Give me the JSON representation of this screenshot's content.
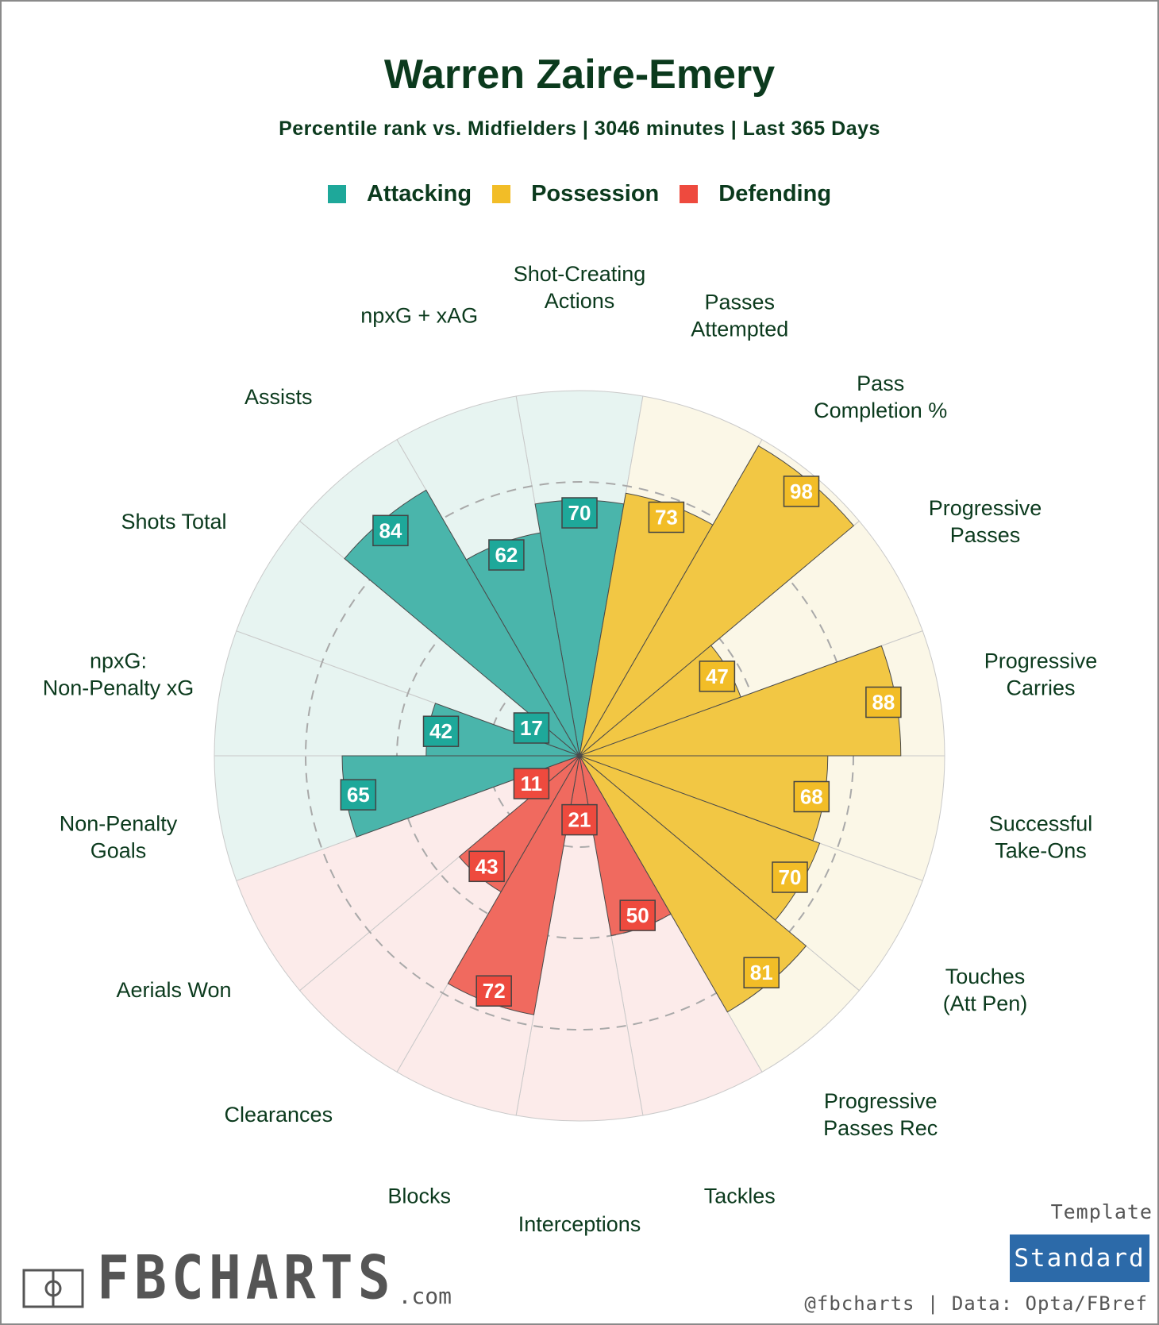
{
  "header": {
    "title": "Warren Zaire-Emery",
    "subtitle": "Percentile rank vs. Midfielders | 3046 minutes | Last 365 Days"
  },
  "legend": [
    {
      "label": "Attacking",
      "color": "#1ea89a"
    },
    {
      "label": "Possession",
      "color": "#f2bd27"
    },
    {
      "label": "Defending",
      "color": "#ee4a3e"
    }
  ],
  "chart_data": {
    "type": "polar-bar",
    "scale": [
      0,
      100
    ],
    "reference_rings": [
      25,
      50,
      75
    ],
    "categories": [
      {
        "label": "Shot-Creating Actions",
        "group": "Attacking",
        "value": 70
      },
      {
        "label": "Passes Attempted",
        "group": "Possession",
        "value": 73
      },
      {
        "label": "Pass Completion %",
        "group": "Possession",
        "value": 98
      },
      {
        "label": "Progressive Passes",
        "group": "Possession",
        "value": 47
      },
      {
        "label": "Progressive Carries",
        "group": "Possession",
        "value": 88
      },
      {
        "label": "Successful Take-Ons",
        "group": "Possession",
        "value": 68
      },
      {
        "label": "Touches (Att Pen)",
        "group": "Possession",
        "value": 70
      },
      {
        "label": "Progressive Passes Rec",
        "group": "Possession",
        "value": 81
      },
      {
        "label": "Tackles",
        "group": "Defending",
        "value": 50
      },
      {
        "label": "Interceptions",
        "group": "Defending",
        "value": 21
      },
      {
        "label": "Blocks",
        "group": "Defending",
        "value": 72
      },
      {
        "label": "Clearances",
        "group": "Defending",
        "value": 43
      },
      {
        "label": "Aerials Won",
        "group": "Defending",
        "value": 11
      },
      {
        "label": "Non-Penalty Goals",
        "group": "Attacking",
        "value": 65
      },
      {
        "label": "npxG: Non-Penalty xG",
        "group": "Attacking",
        "value": 42
      },
      {
        "label": "Shots Total",
        "group": "Attacking",
        "value": 17
      },
      {
        "label": "Assists",
        "group": "Attacking",
        "value": 84
      },
      {
        "label": "npxG + xAG",
        "group": "Attacking",
        "value": 62
      }
    ],
    "group_colors": {
      "Attacking": {
        "bar": "#4ab5ab",
        "bg": "#e7f4f1",
        "label_bg": "#1ea89a"
      },
      "Possession": {
        "bar": "#f2c744",
        "bg": "#fbf7e7",
        "label_bg": "#f2bd27"
      },
      "Defending": {
        "bar": "#f06a5f",
        "bg": "#fcebea",
        "label_bg": "#ee4a3e"
      }
    }
  },
  "footer": {
    "logo_text": "FBCHARTS",
    "logo_suffix": ".com",
    "template_label": "Template",
    "template_value": "Standard",
    "credit": "@fbcharts | Data: Opta/FBref"
  }
}
